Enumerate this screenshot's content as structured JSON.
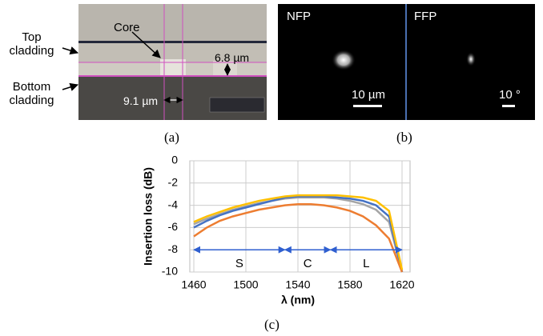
{
  "panels": {
    "a": {
      "caption": "(a)",
      "top_label": "Top cladding",
      "bottom_label": "Bottom cladding",
      "core_label": "Core",
      "height_label": "6.8 µm",
      "width_label": "9.1 µm"
    },
    "b": {
      "caption": "(b)",
      "nfp_label": "NFP",
      "ffp_label": "FFP",
      "nfp_scale": "10 µm",
      "ffp_scale": "10 °"
    },
    "c": {
      "caption": "(c)"
    }
  },
  "chart_data": {
    "type": "line",
    "xlabel": "λ (nm)",
    "ylabel": "Insertion loss (dB)",
    "x": [
      1460,
      1470,
      1480,
      1490,
      1500,
      1510,
      1520,
      1530,
      1540,
      1550,
      1560,
      1570,
      1580,
      1590,
      1600,
      1610,
      1620
    ],
    "series": [
      {
        "color": "#a5a5a5",
        "values": [
          -5.7,
          -5.2,
          -4.8,
          -4.4,
          -4.1,
          -3.8,
          -3.6,
          -3.4,
          -3.3,
          -3.3,
          -3.3,
          -3.4,
          -3.6,
          -3.9,
          -4.4,
          -5.5,
          -10
        ]
      },
      {
        "color": "#4472c4",
        "values": [
          -6.0,
          -5.4,
          -4.9,
          -4.5,
          -4.2,
          -3.9,
          -3.6,
          -3.3,
          -3.2,
          -3.2,
          -3.2,
          -3.3,
          -3.4,
          -3.6,
          -4.0,
          -5.0,
          -10
        ]
      },
      {
        "color": "#ed7d31",
        "values": [
          -6.8,
          -6.0,
          -5.4,
          -5.0,
          -4.7,
          -4.4,
          -4.2,
          -4.0,
          -3.9,
          -3.9,
          -4.0,
          -4.2,
          -4.5,
          -5.0,
          -5.8,
          -7.0,
          -10
        ]
      },
      {
        "color": "#ffc000",
        "values": [
          -5.5,
          -5.0,
          -4.6,
          -4.2,
          -3.9,
          -3.6,
          -3.4,
          -3.2,
          -3.1,
          -3.1,
          -3.1,
          -3.1,
          -3.2,
          -3.3,
          -3.6,
          -4.5,
          -9.8
        ]
      }
    ],
    "bands": [
      {
        "label": "S",
        "range": [
          1460,
          1530
        ]
      },
      {
        "label": "C",
        "range": [
          1530,
          1565
        ]
      },
      {
        "label": "L",
        "range": [
          1565,
          1620
        ]
      }
    ],
    "band_y": -8,
    "band_color": "#2f5fd0",
    "xlim": [
      1460,
      1620
    ],
    "xticks": [
      1460,
      1500,
      1540,
      1580,
      1620
    ],
    "ylim": [
      -10,
      0
    ],
    "yticks": [
      0,
      -2,
      -4,
      -6,
      -8,
      -10
    ],
    "grid": true
  }
}
